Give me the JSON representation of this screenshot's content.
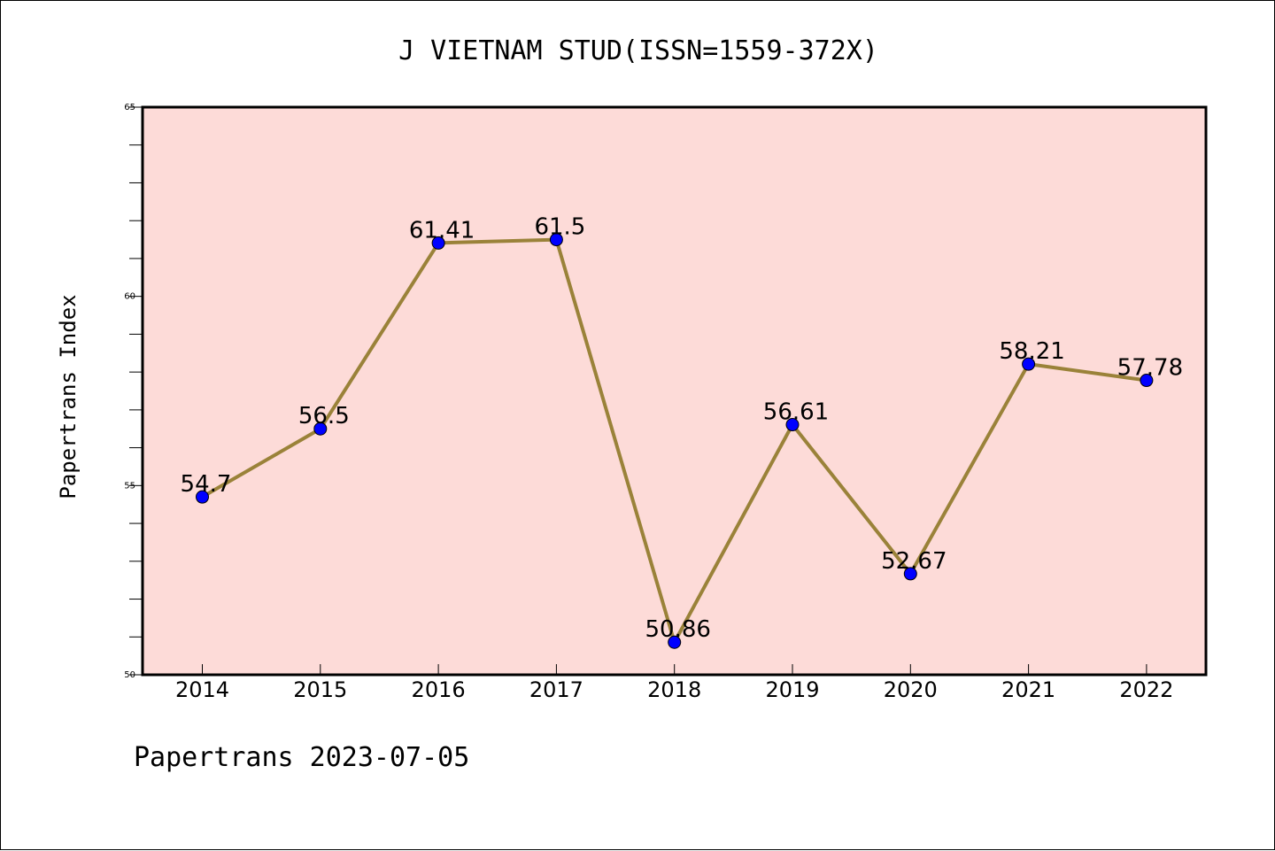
{
  "chart_data": {
    "type": "line",
    "title": "J VIETNAM STUD(ISSN=1559-372X)",
    "xlabel": "",
    "ylabel": "Papertrans Index",
    "categories": [
      "2014",
      "2015",
      "2016",
      "2017",
      "2018",
      "2019",
      "2020",
      "2021",
      "2022"
    ],
    "series": [
      {
        "values": [
          54.7,
          56.5,
          61.41,
          61.5,
          50.86,
          56.61,
          52.67,
          58.21,
          57.78
        ],
        "labels": [
          "54.7",
          "56.5",
          "61.41",
          "61.5",
          "50.86",
          "56.61",
          "52.67",
          "58.21",
          "57.78"
        ]
      }
    ],
    "ylim": [
      50,
      65
    ],
    "yticks": [
      "50",
      "55",
      "60",
      "65"
    ],
    "grid": false,
    "legend": "none",
    "footer": "Papertrans 2023-07-05",
    "colors": {
      "plot_background": "#fddbd8",
      "line": "#9a8239",
      "marker": "#0000ff",
      "axis": "#000000"
    }
  }
}
